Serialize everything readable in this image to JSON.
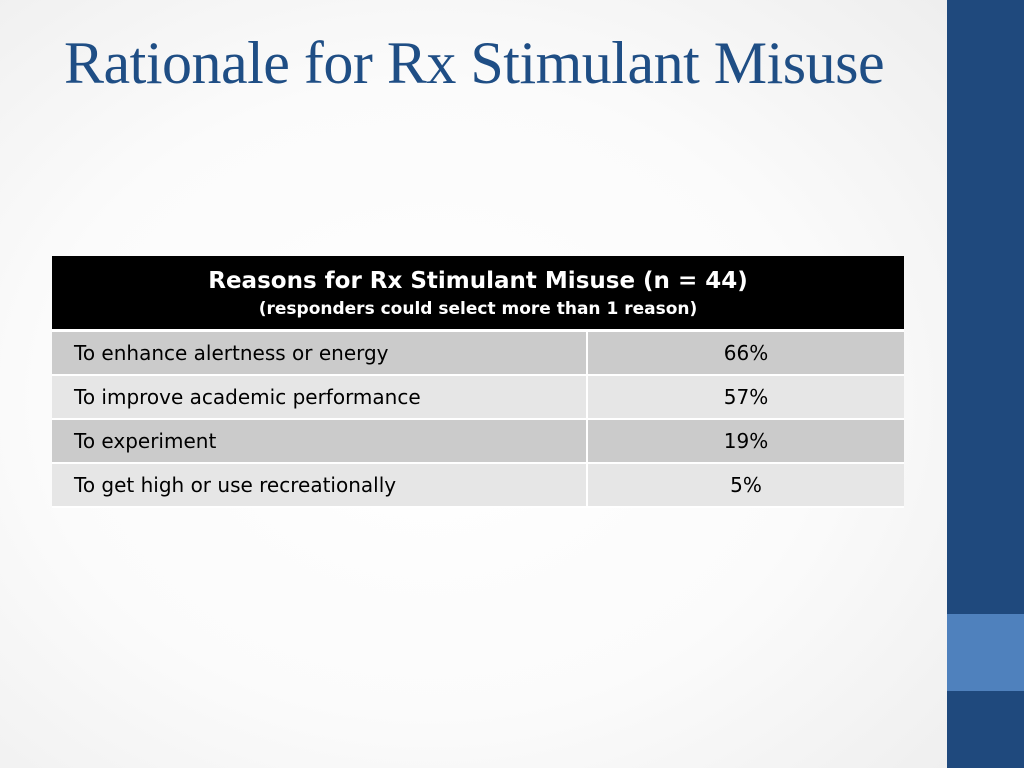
{
  "slide": {
    "title": "Rationale for Rx Stimulant Misuse"
  },
  "table": {
    "header": "Reasons for Rx Stimulant Misuse (n = 44)",
    "subheader": "(responders could select more than 1 reason)",
    "rows": [
      {
        "reason": "To enhance alertness or energy",
        "percent": "66%"
      },
      {
        "reason": "To improve academic performance",
        "percent": "57%"
      },
      {
        "reason": "To experiment",
        "percent": "19%"
      },
      {
        "reason": "To get high or use recreationally",
        "percent": "5%"
      }
    ]
  },
  "colors": {
    "title": "#1f4e85",
    "sidebar": "#1f497d",
    "sidebar_accent": "#4f81bd",
    "header_bg": "#000000",
    "row_dark": "#cbcbcb",
    "row_light": "#e6e6e6"
  }
}
